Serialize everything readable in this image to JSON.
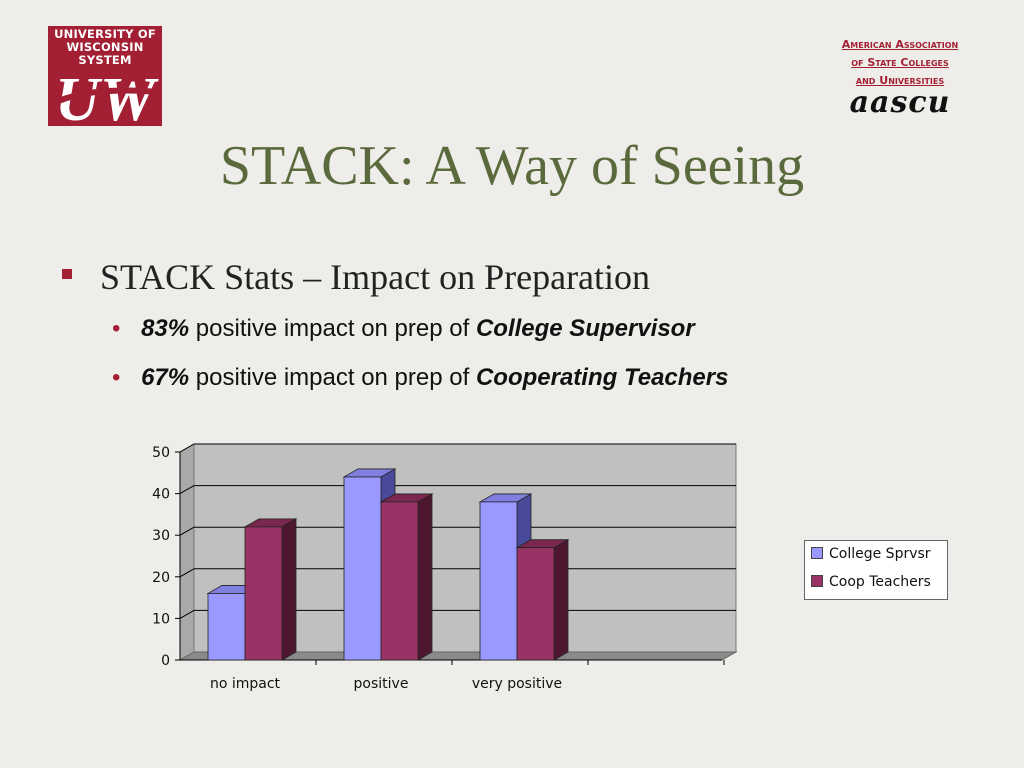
{
  "logo_left": {
    "line1": "UNIVERSITY OF",
    "line2": "WISCONSIN SYSTEM",
    "mark": "UW"
  },
  "logo_right": {
    "line1": "American Association",
    "line2": "of State Colleges",
    "line3": "and Universities",
    "mark": "aascu"
  },
  "slide": {
    "title": "STACK: A Way of Seeing",
    "bullet": "STACK Stats – Impact on Preparation",
    "sub_bullets": [
      {
        "value": "83%",
        "text": "positive impact on prep of",
        "subject": "College Supervisor"
      },
      {
        "value": "67%",
        "text": "positive impact on prep of",
        "subject": "Cooperating Teachers"
      }
    ]
  },
  "colors": {
    "accent": "#a31f34",
    "title": "#5a6a3c",
    "series1": "#9999ff",
    "series2": "#993366"
  },
  "chart_data": {
    "type": "bar",
    "categories": [
      "no impact",
      "positive",
      "very positive"
    ],
    "series": [
      {
        "name": "College Sprvsr",
        "values": [
          16,
          44,
          38
        ]
      },
      {
        "name": "Coop Teachers",
        "values": [
          32,
          38,
          27
        ]
      }
    ],
    "ylim": [
      0,
      50
    ],
    "yticks": [
      0,
      10,
      20,
      30,
      40,
      50
    ],
    "grid": true,
    "legend": "right",
    "style": "3d-clustered"
  }
}
